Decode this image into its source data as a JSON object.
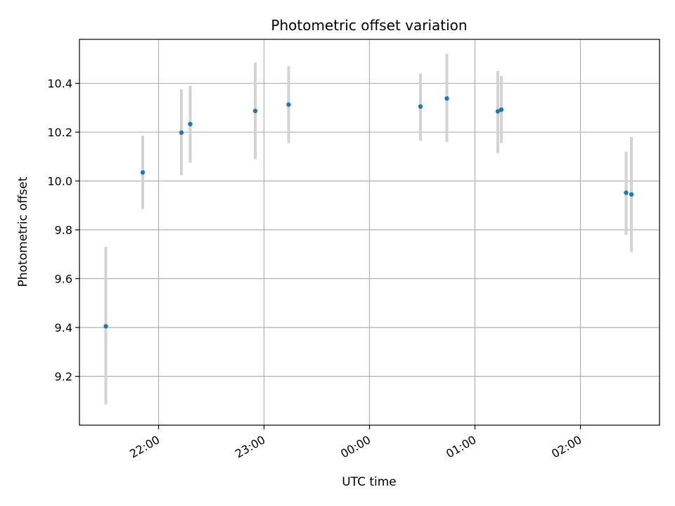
{
  "chart_data": {
    "type": "scatter",
    "title": "Photometric offset variation",
    "xlabel": "UTC time",
    "ylabel": "Photometric offset",
    "grid": true,
    "x_unit": "UTC time (HH:MM)",
    "x_ticks": [
      "22:00",
      "23:00",
      "00:00",
      "01:00",
      "02:00"
    ],
    "y_ticks": [
      "9.2",
      "9.4",
      "9.6",
      "9.8",
      "10.0",
      "10.2",
      "10.4"
    ],
    "xlim": [
      "21:15",
      "02:45"
    ],
    "ylim": [
      9.0,
      10.58
    ],
    "series": [
      {
        "marker_color": "#1f77b4",
        "errorbar_color": "#d3d3d3",
        "points": [
          {
            "x": "21:30",
            "y": 9.405,
            "yerr_low": 9.085,
            "yerr_high": 9.73
          },
          {
            "x": "21:51",
            "y": 10.035,
            "yerr_low": 9.885,
            "yerr_high": 10.185
          },
          {
            "x": "22:13",
            "y": 10.198,
            "yerr_low": 10.025,
            "yerr_high": 10.375
          },
          {
            "x": "22:18",
            "y": 10.233,
            "yerr_low": 10.075,
            "yerr_high": 10.39
          },
          {
            "x": "22:55",
            "y": 10.287,
            "yerr_low": 10.09,
            "yerr_high": 10.485
          },
          {
            "x": "23:14",
            "y": 10.313,
            "yerr_low": 10.155,
            "yerr_high": 10.47
          },
          {
            "x": "00:29",
            "y": 10.305,
            "yerr_low": 10.165,
            "yerr_high": 10.44
          },
          {
            "x": "00:44",
            "y": 10.338,
            "yerr_low": 10.16,
            "yerr_high": 10.52
          },
          {
            "x": "01:13",
            "y": 10.285,
            "yerr_low": 10.115,
            "yerr_high": 10.45
          },
          {
            "x": "01:15",
            "y": 10.292,
            "yerr_low": 10.155,
            "yerr_high": 10.43
          },
          {
            "x": "02:26",
            "y": 9.952,
            "yerr_low": 9.78,
            "yerr_high": 10.12
          },
          {
            "x": "02:29",
            "y": 9.945,
            "yerr_low": 9.71,
            "yerr_high": 10.18
          }
        ]
      }
    ]
  }
}
